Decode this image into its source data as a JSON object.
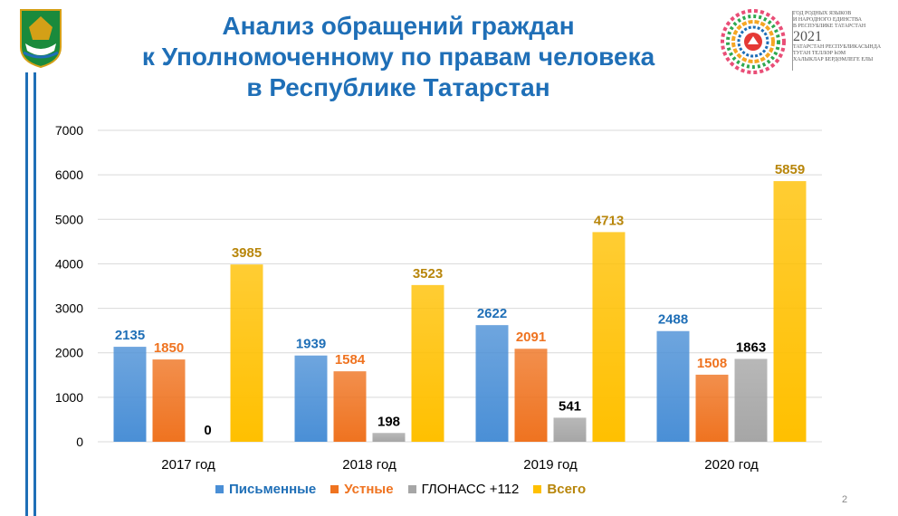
{
  "header": {
    "title_lines": [
      "Анализ обращений граждан",
      "к Уполномоченному по правам человека",
      "в Республике Татарстан"
    ],
    "year_block": {
      "ru_lines": [
        "ГОД РОДНЫХ ЯЗЫКОВ",
        "И НАРОДНОГО ЕДИНСТВА",
        "В РЕСПУБЛИКЕ ТАТАРСТАН"
      ],
      "year": "2021",
      "tt_lines": [
        "ТАТАРСТАН РЕСПУБЛИКАСЫНДА",
        "ТУГАН ТЕЛЛӘР һӘМ",
        "ХАЛЫКЛАР БЕРДӘМЛЕГЕ ЕЛЫ"
      ]
    }
  },
  "page_number": "2",
  "colors": {
    "title": "#1f6fb7",
    "written": "#4a8fd6",
    "oral": "#ef7320",
    "glonass": "#a6a6a6",
    "total": "#ffc000",
    "total_label": "#b8860b",
    "axis_text": "#000000"
  },
  "chart_data": {
    "type": "bar",
    "title": "Анализ обращений граждан к Уполномоченному по правам человека в Республике Татарстан",
    "categories": [
      "2017 год",
      "2018 год",
      "2019 год",
      "2020 год"
    ],
    "ylim": [
      0,
      7000
    ],
    "yticks": [
      0,
      1000,
      2000,
      3000,
      4000,
      5000,
      6000,
      7000
    ],
    "grid": true,
    "legend_position": "bottom",
    "series": [
      {
        "name": "Письменные",
        "color": "#4a8fd6",
        "label_color": "#1f6fb7",
        "values": [
          2135,
          1939,
          2622,
          2488
        ]
      },
      {
        "name": "Устные",
        "color": "#ef7320",
        "label_color": "#ef7320",
        "values": [
          1850,
          1584,
          2091,
          1508
        ]
      },
      {
        "name": "ГЛОНАСС +112",
        "color": "#a6a6a6",
        "label_color": "#000000",
        "values": [
          0,
          198,
          541,
          1863
        ]
      },
      {
        "name": "Всего",
        "color": "#ffc000",
        "label_color": "#b8860b",
        "values": [
          3985,
          3523,
          4713,
          5859
        ]
      }
    ]
  }
}
